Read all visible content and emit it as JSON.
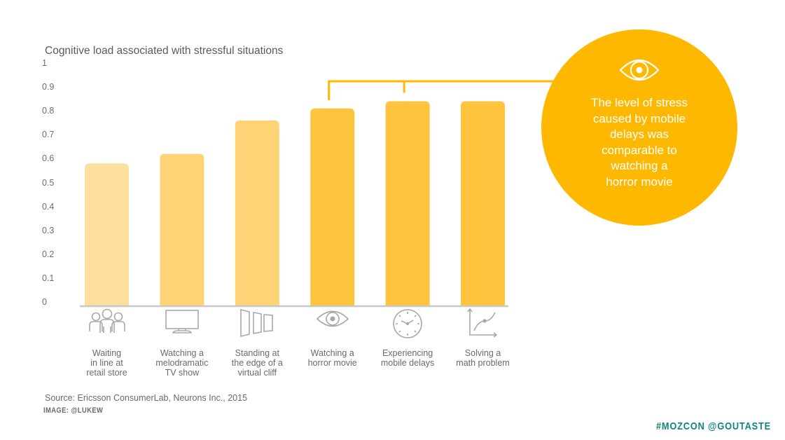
{
  "chart_data": {
    "type": "bar",
    "title": "Cognitive load associated with stressful situations",
    "xlabel": "",
    "ylabel": "",
    "ylim": [
      0,
      1
    ],
    "yticks": [
      "0",
      "0.1",
      "0.2",
      "0.3",
      "0.4",
      "0.5",
      "0.6",
      "0.7",
      "0.8",
      "0.9",
      "1"
    ],
    "ytick_values": [
      0,
      0.1,
      0.2,
      0.3,
      0.4,
      0.5,
      0.6,
      0.7,
      0.8,
      0.9,
      1
    ],
    "grid": false,
    "categories": [
      "Waiting\nin line at\nretail store",
      "Watching a\nmelodramatic\nTV show",
      "Standing at\nthe edge of a\nvirtual cliff",
      "Watching a\nhorror movie",
      "Experiencing\nmobile delays",
      "Solving a\nmath problem"
    ],
    "category_icons": [
      "people-group-icon",
      "tv-monitor-icon",
      "doors-cliff-icon",
      "eye-icon",
      "clock-icon",
      "graph-curve-icon"
    ],
    "values": [
      0.58,
      0.62,
      0.76,
      0.81,
      0.84,
      0.84
    ],
    "bar_colors": [
      "#fedf9e",
      "#fed375",
      "#fed375",
      "#ffc43d",
      "#ffc43d",
      "#ffc43d"
    ],
    "annotation": {
      "icon": "eye-icon",
      "text": "The level of stress\ncaused by mobile\ndelays was\ncomparable to\nwatching a\nhorror movie",
      "links_categories": [
        3,
        4
      ],
      "color": "#ffb800"
    }
  },
  "source": "Source: Ericsson ConsumerLab, Neurons Inc., 2015",
  "image_credit": "IMAGE: @LUKEW",
  "hashtag": "#MOZCON @GOUTASTE",
  "colors": {
    "axis": "#c8c8c8",
    "icon": "#a8a8a8",
    "hashtag": "#13857c"
  }
}
